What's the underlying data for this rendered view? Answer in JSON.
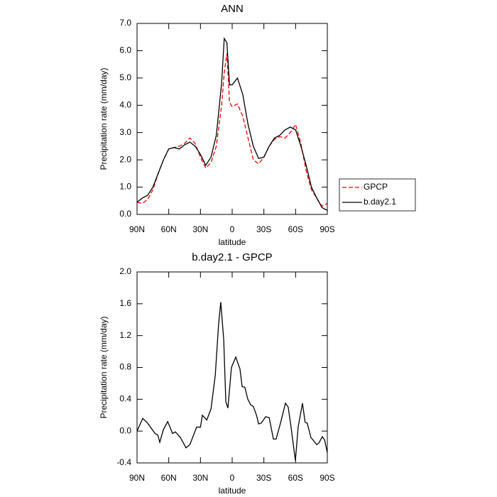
{
  "chart_data": [
    {
      "type": "line",
      "title": "ANN",
      "xlabel": "latitude",
      "ylabel": "Precipitation rate (mm/day)",
      "x": [
        90,
        85,
        80,
        75,
        70,
        65,
        60,
        55,
        50,
        45,
        40,
        35,
        30,
        25,
        20,
        15,
        10,
        7.5,
        5,
        2.5,
        0,
        -5,
        -10,
        -15,
        -20,
        -25,
        -30,
        -35,
        -40,
        -45,
        -50,
        -55,
        -60,
        -65,
        -70,
        -75,
        -80,
        -85,
        -90
      ],
      "series": [
        {
          "name": "GPCP",
          "color": "#ff0000",
          "linestyle": "dashed",
          "values": [
            0.45,
            0.4,
            0.55,
            0.9,
            1.5,
            2.0,
            2.4,
            2.45,
            2.5,
            2.6,
            2.8,
            2.6,
            2.1,
            1.7,
            1.9,
            2.5,
            4.0,
            5.2,
            5.9,
            4.1,
            3.95,
            4.05,
            3.6,
            2.8,
            2.0,
            1.85,
            2.1,
            2.5,
            2.75,
            2.85,
            2.8,
            3.0,
            3.3,
            2.6,
            1.6,
            0.9,
            0.6,
            0.3,
            0.4
          ]
        },
        {
          "name": "b.day2.1",
          "color": "#000000",
          "linestyle": "solid",
          "values": [
            0.45,
            0.6,
            0.7,
            1.0,
            1.5,
            2.0,
            2.4,
            2.45,
            2.4,
            2.55,
            2.65,
            2.5,
            2.2,
            1.8,
            2.1,
            2.9,
            4.8,
            6.45,
            6.3,
            4.75,
            4.75,
            5.0,
            4.4,
            3.3,
            2.5,
            2.05,
            2.1,
            2.5,
            2.8,
            2.9,
            3.1,
            3.2,
            3.1,
            2.5,
            1.8,
            1.0,
            0.6,
            0.25,
            0.15
          ]
        }
      ],
      "xlim": [
        90,
        -90
      ],
      "xticks": [
        {
          "value": 90,
          "label": "90N"
        },
        {
          "value": 60,
          "label": "60N"
        },
        {
          "value": 30,
          "label": "30N"
        },
        0,
        {
          "value": -30,
          "label": "30S"
        },
        {
          "value": -60,
          "label": "60S"
        },
        {
          "value": -90,
          "label": "90S"
        }
      ],
      "ylim": [
        0,
        7
      ],
      "yticks": [
        {
          "value": 0,
          "label": "0.0"
        },
        {
          "value": 1,
          "label": "1.0"
        },
        {
          "value": 2,
          "label": "2.0"
        },
        {
          "value": 3,
          "label": "3.0"
        },
        {
          "value": 4,
          "label": "4.0"
        },
        {
          "value": 5,
          "label": "5.0"
        },
        {
          "value": 6,
          "label": "6.0"
        },
        {
          "value": 7,
          "label": "7.0"
        }
      ],
      "legend": "right"
    },
    {
      "type": "line",
      "title": "b.day2.1 - GPCP",
      "xlabel": "latitude",
      "ylabel": "Precipitation rate (mm/day)",
      "x": [
        90,
        84.6,
        80,
        73,
        70.3,
        68.5,
        65,
        61,
        56.4,
        53.7,
        49,
        43.7,
        40,
        33.6,
        30,
        28.2,
        24,
        20,
        16,
        12.8,
        10.8,
        8,
        6,
        4,
        0.7,
        -3.4,
        -7.4,
        -9.4,
        -12,
        -14.8,
        -17.5,
        -20,
        -23,
        -25,
        -27.5,
        -31.6,
        -35,
        -39,
        -41.6,
        -45.7,
        -50.4,
        -53,
        -55.7,
        -59.8,
        -62.4,
        -66.5,
        -69,
        -71,
        -74.5,
        -80,
        -82,
        -85.3,
        -87.4,
        -90
      ],
      "series": [
        {
          "name": "b.day2.1 - GPCP",
          "color": "#000000",
          "linestyle": "solid",
          "values": [
            0.0,
            0.16,
            0.1,
            -0.03,
            -0.05,
            -0.14,
            0.02,
            0.12,
            -0.03,
            -0.01,
            -0.08,
            -0.21,
            -0.17,
            0.05,
            0.05,
            0.2,
            0.14,
            0.28,
            0.7,
            1.35,
            1.62,
            1.15,
            0.37,
            0.29,
            0.8,
            0.93,
            0.78,
            0.56,
            0.55,
            0.4,
            0.33,
            0.31,
            0.2,
            0.09,
            0.1,
            0.18,
            0.17,
            -0.1,
            -0.1,
            0.1,
            0.35,
            0.3,
            0.05,
            -0.37,
            0.05,
            0.35,
            0.11,
            0.1,
            -0.08,
            -0.17,
            -0.15,
            -0.07,
            -0.11,
            -0.27
          ]
        }
      ],
      "xlim": [
        90,
        -90
      ],
      "xticks": [
        {
          "value": 90,
          "label": "90N"
        },
        {
          "value": 60,
          "label": "60N"
        },
        {
          "value": 30,
          "label": "30N"
        },
        0,
        {
          "value": -30,
          "label": "30S"
        },
        {
          "value": -60,
          "label": "60S"
        },
        {
          "value": -90,
          "label": "90S"
        }
      ],
      "ylim": [
        -0.4,
        2.0
      ],
      "yticks": [
        {
          "value": 2.0,
          "label": "2.0"
        },
        {
          "value": 1.6,
          "label": "1.6"
        },
        {
          "value": 1.2,
          "label": "1.2"
        },
        {
          "value": 0.8,
          "label": "0.8"
        },
        {
          "value": 0.4,
          "label": "0.4"
        },
        {
          "value": 0,
          "label": "0.0"
        },
        {
          "value": -0.4,
          "label": "-0.4"
        }
      ]
    }
  ]
}
